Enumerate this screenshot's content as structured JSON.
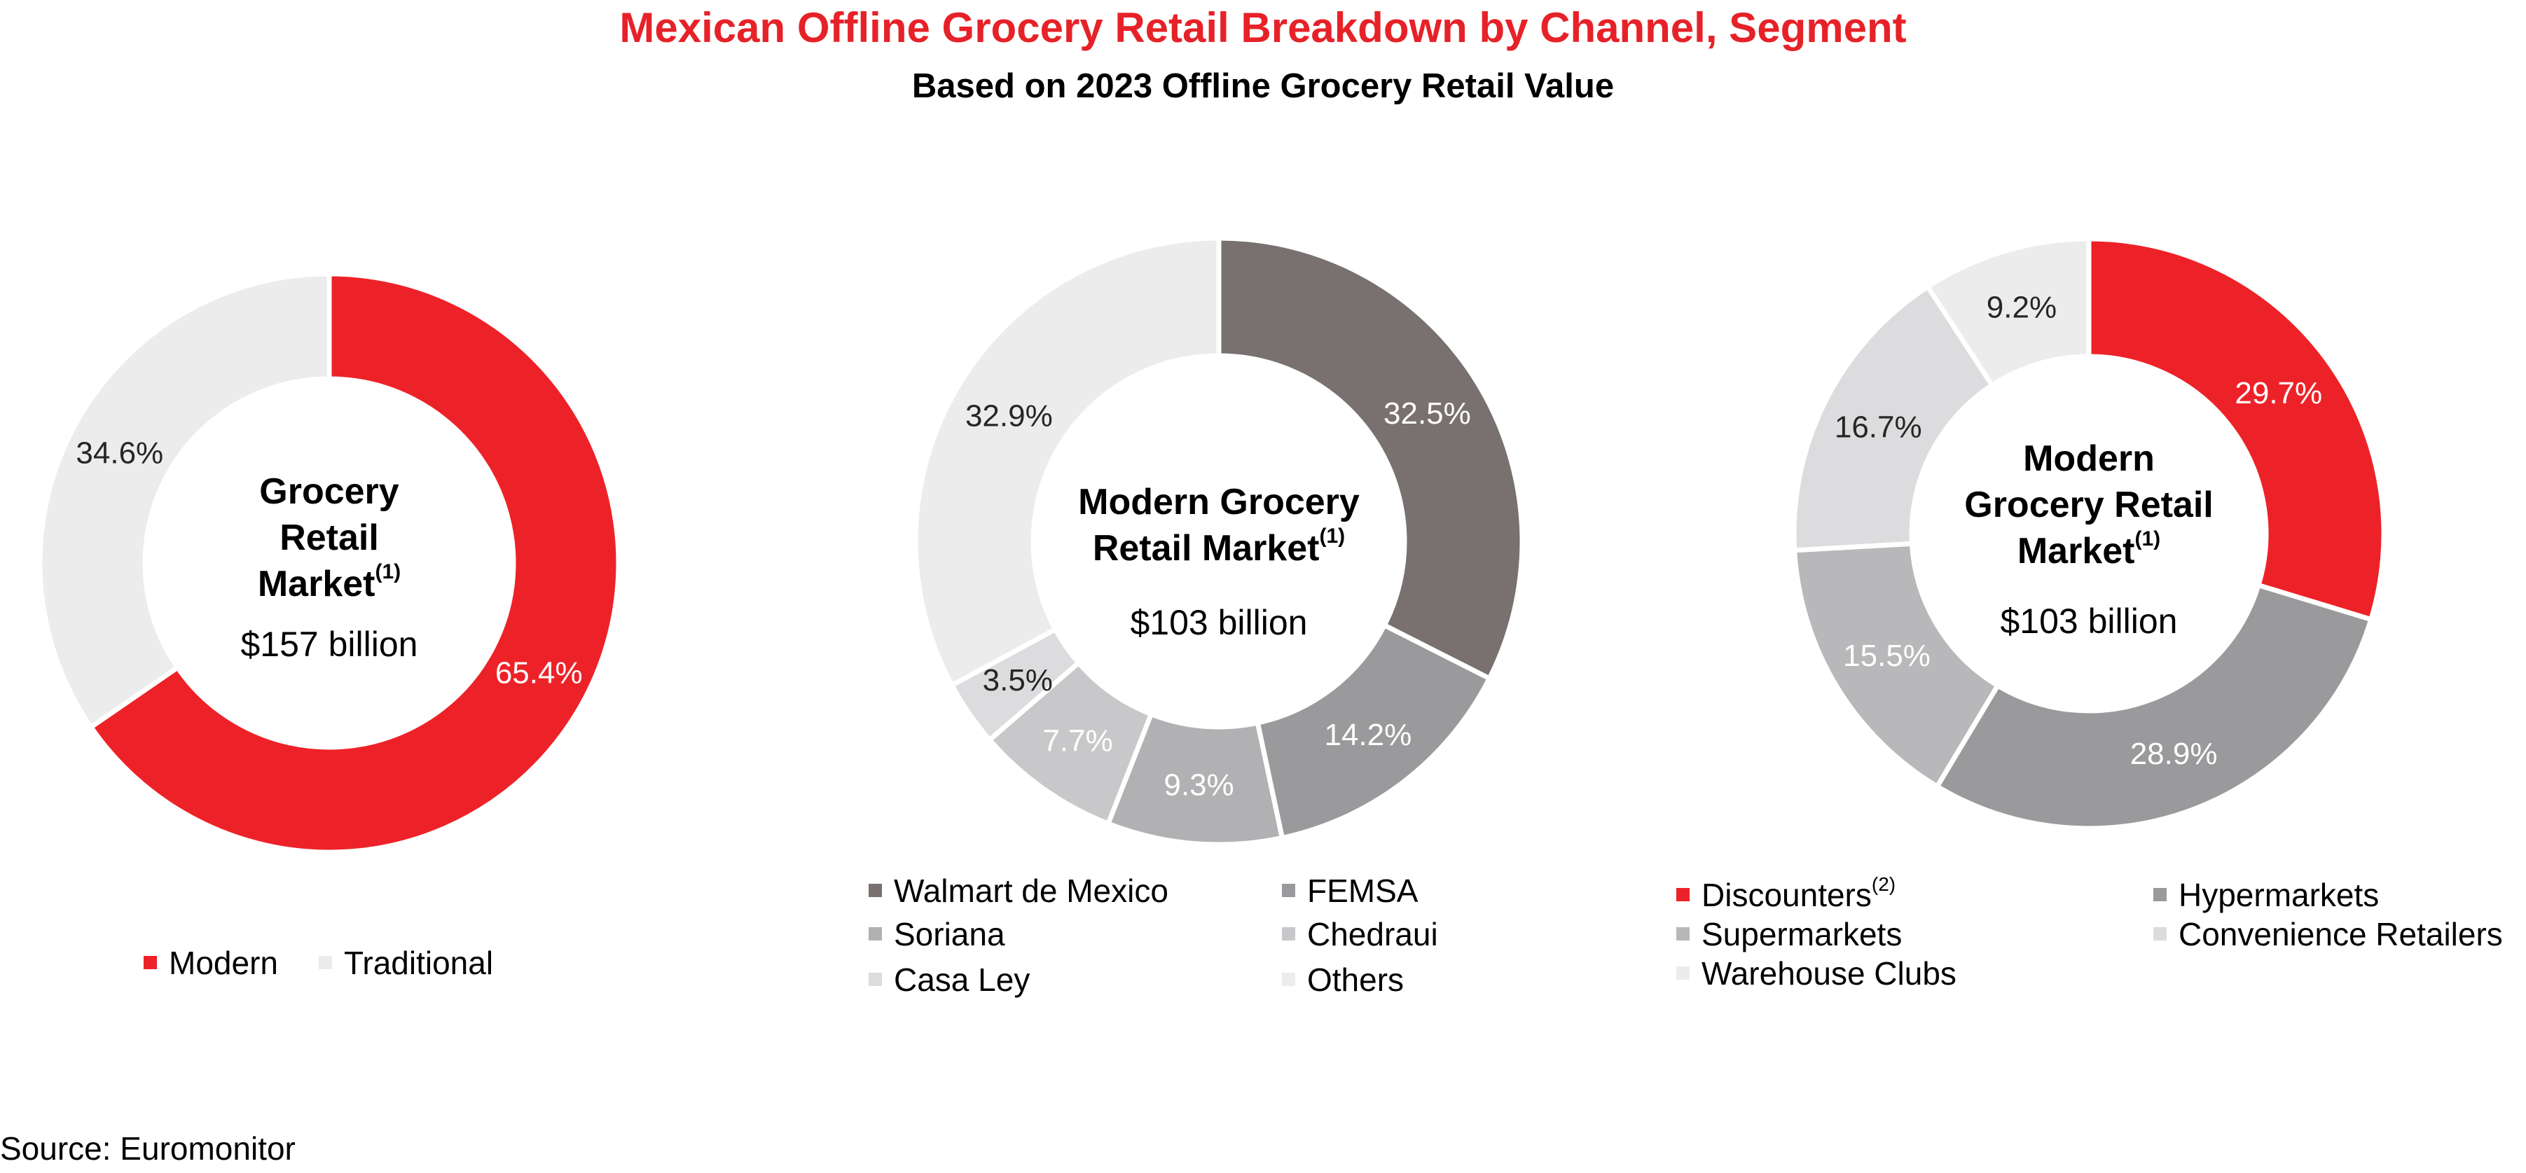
{
  "title": "Mexican Offline Grocery Retail Breakdown by Channel, Segment",
  "subtitle": "Based on 2023 Offline Grocery Retail Value",
  "source": "Source: Euromonitor",
  "chart_data": [
    {
      "type": "pie",
      "center": {
        "lines": [
          "Grocery",
          "Retail",
          "Market"
        ],
        "superscript": "(1)",
        "value": "$157 billion"
      },
      "slices": [
        {
          "name": "Modern",
          "value": 65.4,
          "label": "65.4%",
          "color": "#ed2228",
          "label_color": "#ffffff"
        },
        {
          "name": "Traditional",
          "value": 34.6,
          "label": "34.6%",
          "color": "#ececec",
          "label_color": "#262626"
        }
      ],
      "legend": {
        "placement": "bottom",
        "entries": [
          "Modern",
          "Traditional"
        ]
      }
    },
    {
      "type": "pie",
      "center": {
        "lines": [
          "Modern Grocery",
          "Retail Market"
        ],
        "superscript": "(1)",
        "value": "$103 billion"
      },
      "slices": [
        {
          "name": "Walmart de Mexico",
          "value": 32.5,
          "label": "32.5%",
          "color": "#787170",
          "label_color": "#ffffff"
        },
        {
          "name": "FEMSA",
          "value": 14.2,
          "label": "14.2%",
          "color": "#9a9a9c",
          "label_color": "#ffffff"
        },
        {
          "name": "Soriana",
          "value": 9.3,
          "label": "9.3%",
          "color": "#b1b1b3",
          "label_color": "#ffffff"
        },
        {
          "name": "Chedraui",
          "value": 7.7,
          "label": "7.7%",
          "color": "#c8c8ca",
          "label_color": "#ffffff"
        },
        {
          "name": "Casa Ley",
          "value": 3.5,
          "label": "3.5%",
          "color": "#dcdcde",
          "label_color": "#262626"
        },
        {
          "name": "Others",
          "value": 32.9,
          "label": "32.9%",
          "color": "#ececec",
          "label_color": "#262626"
        }
      ],
      "legend": {
        "placement": "bottom",
        "entries": [
          "Walmart de Mexico",
          "FEMSA",
          "Soriana",
          "Chedraui",
          "Casa Ley",
          "Others"
        ]
      }
    },
    {
      "type": "pie",
      "center": {
        "lines": [
          "Modern",
          "Grocery Retail",
          "Market"
        ],
        "superscript": "(1)",
        "value": "$103 billion"
      },
      "slices": [
        {
          "name": "Discounters",
          "superscript": "(2)",
          "value": 29.7,
          "label": "29.7%",
          "color": "#ed2228",
          "label_color": "#ffffff"
        },
        {
          "name": "Hypermarkets",
          "value": 28.9,
          "label": "28.9%",
          "color": "#9a9a9c",
          "label_color": "#ffffff"
        },
        {
          "name": "Supermarkets",
          "value": 15.5,
          "label": "15.5%",
          "color": "#b8b8ba",
          "label_color": "#ffffff"
        },
        {
          "name": "Convenience Retailers",
          "value": 16.7,
          "label": "16.7%",
          "color": "#dcdcde",
          "label_color": "#262626"
        },
        {
          "name": "Warehouse Clubs",
          "value": 9.2,
          "label": "9.2%",
          "color": "#ececec",
          "label_color": "#262626"
        }
      ],
      "legend": {
        "placement": "bottom",
        "entries": [
          "Discounters",
          "Hypermarkets",
          "Supermarkets",
          "Convenience Retailers",
          "Warehouse Clubs"
        ]
      }
    }
  ]
}
